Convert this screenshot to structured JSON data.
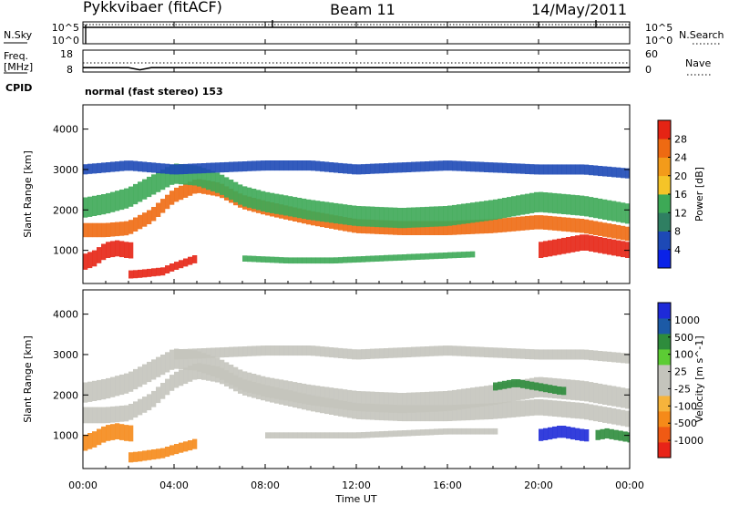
{
  "header": {
    "station": "Pykkvibaer (fitACF)",
    "beam": "Beam 11",
    "date": "14/May/2011"
  },
  "colors": {
    "power_scale": [
      "#0a22e8",
      "#1d49b6",
      "#2f7f62",
      "#3da956",
      "#f5c428",
      "#f39b1a",
      "#ee6a12",
      "#e52414"
    ],
    "velocity_scale": [
      "#e82418",
      "#f05a14",
      "#f58a19",
      "#f6b43c",
      "#c4c4bc",
      "#c4c4bc",
      "#5ccc34",
      "#2e8c3c",
      "#1c5aa6",
      "#1e2ad8"
    ],
    "gray": "#c4c4bc"
  },
  "panels": {
    "nsky": {
      "left_label": "N.Sky",
      "left_ticks": [
        "10^5",
        "10^0"
      ],
      "right_ticks": [
        "10^5",
        "10^0"
      ],
      "right_label": "N.Search"
    },
    "freq": {
      "left_label_1": "Freq.",
      "left_label_2": "[MHz]",
      "left_ticks": [
        "18",
        "8"
      ],
      "right_ticks": [
        "60",
        "0"
      ],
      "right_label": "Nave"
    },
    "cpid": {
      "left_label": "CPID",
      "text": "normal (fast stereo) 153"
    },
    "power": {
      "ylabel": "Slant Range [km]",
      "yticks": [
        "4000",
        "3000",
        "2000",
        "1000"
      ],
      "cbar_label": "Power [dB]",
      "cbar_ticks": [
        "28",
        "24",
        "20",
        "16",
        "12",
        "8",
        "4"
      ]
    },
    "velocity": {
      "ylabel": "Slant Range [km]",
      "yticks": [
        "4000",
        "3000",
        "2000",
        "1000"
      ],
      "cbar_label": "Velocity [m s^-1]",
      "cbar_ticks": [
        "1000",
        "500",
        "100",
        "25",
        "-25",
        "-100",
        "-500",
        "-1000"
      ]
    }
  },
  "xaxis": {
    "label": "Time UT",
    "ticks": [
      "00:00",
      "04:00",
      "08:00",
      "12:00",
      "16:00",
      "20:00",
      "00:00"
    ]
  },
  "chart_data": [
    {
      "type": "line",
      "title": "N.Sky / N.Search",
      "x": [
        0,
        2,
        4,
        6,
        8,
        10,
        12,
        14,
        16,
        18,
        20,
        22,
        24
      ],
      "series": [
        {
          "name": "N.Sky",
          "values": [
            10000,
            10000,
            10000,
            10000,
            10000,
            10000,
            10000,
            10000,
            10000,
            10000,
            10000,
            10000,
            10000
          ]
        },
        {
          "name": "N.Search",
          "values": [
            20000,
            20000,
            20000,
            20000,
            20000,
            20000,
            20000,
            20000,
            20000,
            20000,
            20000,
            20000,
            20000
          ]
        }
      ],
      "ylim": [
        1,
        100000
      ],
      "yscale": "log"
    },
    {
      "type": "line",
      "title": "Freq. / Nave",
      "x": [
        0,
        2,
        2.5,
        3,
        4,
        6,
        8,
        10,
        12,
        14,
        16,
        18,
        20,
        22,
        24
      ],
      "series": [
        {
          "name": "Freq. [MHz]",
          "values": [
            10,
            10,
            9,
            10,
            10,
            10,
            10,
            10,
            10,
            10,
            10,
            10,
            10,
            10,
            10
          ]
        },
        {
          "name": "Nave",
          "values": [
            30,
            30,
            30,
            30,
            30,
            30,
            30,
            30,
            30,
            30,
            30,
            30,
            30,
            30,
            30
          ]
        }
      ],
      "ylim_left": [
        8,
        18
      ],
      "ylim_right": [
        0,
        60
      ]
    },
    {
      "type": "heatmap",
      "title": "Power [dB]",
      "xlabel": "Time UT",
      "ylabel": "Slant Range [km]",
      "xlim": [
        0,
        24
      ],
      "ylim": [
        180,
        4600
      ],
      "color_scale": [
        0,
        32
      ],
      "features": [
        {
          "kind": "band",
          "x": [
            0,
            1,
            2,
            3,
            4,
            5,
            6,
            7,
            8,
            10,
            12,
            14,
            16,
            18,
            20,
            22,
            24
          ],
          "y": [
            1500,
            1500,
            1550,
            1850,
            2350,
            2600,
            2500,
            2200,
            2050,
            1800,
            1600,
            1550,
            1550,
            1600,
            1700,
            1600,
            1400
          ],
          "width_km": 350,
          "value": 24
        },
        {
          "kind": "band",
          "x": [
            0,
            1,
            2,
            3,
            4,
            5,
            6,
            7,
            8,
            10,
            12,
            14,
            16,
            18,
            20,
            22,
            24
          ],
          "y": [
            2050,
            2150,
            2300,
            2600,
            2900,
            2850,
            2650,
            2350,
            2200,
            2000,
            1850,
            1800,
            1850,
            2000,
            2200,
            2100,
            1900
          ],
          "width_km": 500,
          "value": 12
        },
        {
          "kind": "band",
          "x": [
            0,
            2,
            4,
            6,
            8,
            10,
            12,
            14,
            16,
            18,
            20,
            22,
            24
          ],
          "y": [
            3000,
            3100,
            3000,
            3050,
            3100,
            3100,
            3000,
            3050,
            3100,
            3050,
            3000,
            3000,
            2900
          ],
          "width_km": 250,
          "value": 6
        },
        {
          "kind": "band",
          "x": [
            0,
            0.5,
            1,
            1.5,
            2
          ],
          "y": [
            700,
            800,
            1000,
            1050,
            1000
          ],
          "width_km": 400,
          "value": 30
        },
        {
          "kind": "band",
          "x": [
            2,
            2.5,
            3,
            3.5,
            4,
            5
          ],
          "y": [
            400,
            420,
            450,
            480,
            600,
            800
          ],
          "width_km": 200,
          "value": 28
        },
        {
          "kind": "band",
          "x": [
            7,
            9,
            11,
            13,
            15,
            17
          ],
          "y": [
            800,
            750,
            750,
            800,
            850,
            900
          ],
          "width_km": 150,
          "value": 12
        },
        {
          "kind": "band",
          "x": [
            20,
            21,
            22,
            23,
            24
          ],
          "y": [
            1000,
            1100,
            1200,
            1100,
            1000
          ],
          "width_km": 400,
          "value": 28
        }
      ]
    },
    {
      "type": "heatmap",
      "title": "Velocity [m s^-1]",
      "xlabel": "Time UT",
      "ylabel": "Slant Range [km]",
      "xlim": [
        0,
        24
      ],
      "ylim": [
        180,
        4600
      ],
      "color_scale": [
        -1250,
        1250
      ],
      "features": [
        {
          "kind": "band",
          "x": [
            0,
            1,
            2,
            3,
            4,
            5,
            6,
            7,
            8,
            10,
            12,
            14,
            16,
            18,
            20,
            22,
            24
          ],
          "y": [
            1500,
            1500,
            1550,
            1850,
            2350,
            2600,
            2500,
            2200,
            2050,
            1800,
            1600,
            1550,
            1550,
            1600,
            1700,
            1600,
            1400
          ],
          "width_km": 400,
          "value": 0
        },
        {
          "kind": "band",
          "x": [
            0,
            1,
            2,
            3,
            4,
            5,
            6,
            7,
            8,
            10,
            12,
            14,
            16,
            18,
            20,
            22,
            24
          ],
          "y": [
            2050,
            2150,
            2300,
            2600,
            2900,
            2850,
            2650,
            2350,
            2200,
            2000,
            1850,
            1800,
            1850,
            2000,
            2200,
            2100,
            1900
          ],
          "width_km": 500,
          "value": 0
        },
        {
          "kind": "band",
          "x": [
            4,
            6,
            8,
            10,
            12,
            14,
            16,
            18,
            20,
            22,
            24
          ],
          "y": [
            3000,
            3050,
            3100,
            3100,
            3000,
            3050,
            3100,
            3050,
            3000,
            3000,
            2900
          ],
          "width_km": 250,
          "value": 0
        },
        {
          "kind": "band",
          "x": [
            0,
            0.5,
            1,
            1.5,
            2
          ],
          "y": [
            800,
            900,
            1050,
            1100,
            1050
          ],
          "width_km": 400,
          "value": -400
        },
        {
          "kind": "band",
          "x": [
            2,
            2.5,
            3,
            3.5,
            4,
            5
          ],
          "y": [
            450,
            480,
            520,
            560,
            650,
            800
          ],
          "width_km": 250,
          "value": -400
        },
        {
          "kind": "band",
          "x": [
            8,
            10,
            12,
            14,
            16,
            18
          ],
          "y": [
            1000,
            1000,
            1000,
            1050,
            1100,
            1100
          ],
          "width_km": 150,
          "value": 0
        },
        {
          "kind": "band",
          "x": [
            18,
            19,
            20,
            21
          ],
          "y": [
            2200,
            2300,
            2200,
            2100
          ],
          "width_km": 200,
          "value": 350
        },
        {
          "kind": "band",
          "x": [
            20,
            20.5,
            21,
            21.5,
            22
          ],
          "y": [
            1000,
            1050,
            1100,
            1050,
            1000
          ],
          "width_km": 300,
          "value": 1100
        },
        {
          "kind": "band",
          "x": [
            22.5,
            23,
            23.5,
            24
          ],
          "y": [
            1000,
            1050,
            1000,
            950
          ],
          "width_km": 250,
          "value": 200
        }
      ]
    }
  ]
}
